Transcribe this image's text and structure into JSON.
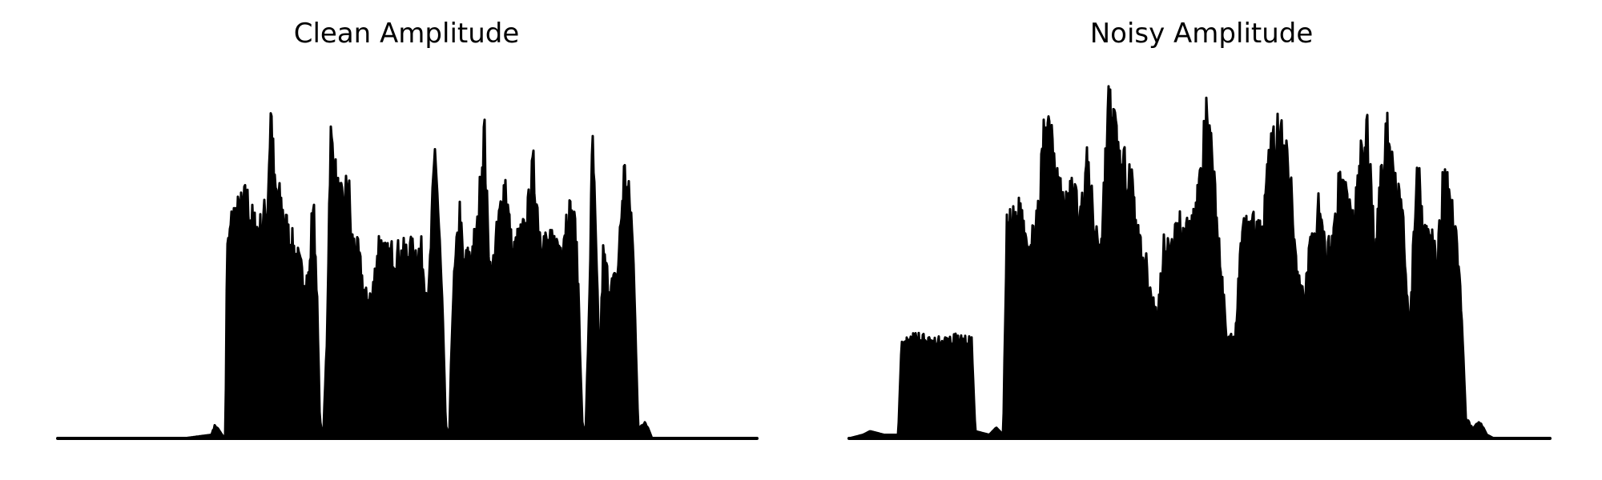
{
  "chart_data": [
    {
      "type": "area",
      "title": "Clean Amplitude",
      "xlabel": "",
      "ylabel": "",
      "axes_visible": false,
      "grid": false,
      "color": "#000000",
      "xlim": [
        0,
        1
      ],
      "ylim": [
        0,
        1
      ],
      "envelope": [
        [
          0.0,
          0.0
        ],
        [
          0.18,
          0.0
        ],
        [
          0.22,
          0.01
        ],
        [
          0.225,
          0.04
        ],
        [
          0.235,
          0.01
        ],
        [
          0.24,
          0.0
        ],
        [
          0.242,
          0.55
        ],
        [
          0.25,
          0.67
        ],
        [
          0.26,
          0.68
        ],
        [
          0.27,
          0.72
        ],
        [
          0.28,
          0.64
        ],
        [
          0.29,
          0.63
        ],
        [
          0.3,
          0.7
        ],
        [
          0.305,
          1.0
        ],
        [
          0.31,
          0.75
        ],
        [
          0.32,
          0.7
        ],
        [
          0.33,
          0.61
        ],
        [
          0.34,
          0.56
        ],
        [
          0.35,
          0.49
        ],
        [
          0.36,
          0.48
        ],
        [
          0.365,
          0.73
        ],
        [
          0.37,
          0.5
        ],
        [
          0.375,
          0.05
        ],
        [
          0.38,
          0.01
        ],
        [
          0.385,
          0.3
        ],
        [
          0.39,
          0.91
        ],
        [
          0.4,
          0.74
        ],
        [
          0.41,
          0.68
        ],
        [
          0.415,
          0.81
        ],
        [
          0.42,
          0.6
        ],
        [
          0.43,
          0.55
        ],
        [
          0.44,
          0.42
        ],
        [
          0.45,
          0.43
        ],
        [
          0.46,
          0.6
        ],
        [
          0.47,
          0.54
        ],
        [
          0.48,
          0.56
        ],
        [
          0.49,
          0.55
        ],
        [
          0.5,
          0.56
        ],
        [
          0.52,
          0.56
        ],
        [
          0.53,
          0.4
        ],
        [
          0.54,
          0.89
        ],
        [
          0.55,
          0.4
        ],
        [
          0.555,
          0.04
        ],
        [
          0.56,
          0.0
        ],
        [
          0.565,
          0.42
        ],
        [
          0.575,
          0.68
        ],
        [
          0.58,
          0.52
        ],
        [
          0.59,
          0.55
        ],
        [
          0.6,
          0.62
        ],
        [
          0.61,
          0.93
        ],
        [
          0.615,
          0.63
        ],
        [
          0.62,
          0.48
        ],
        [
          0.63,
          0.64
        ],
        [
          0.64,
          0.78
        ],
        [
          0.65,
          0.55
        ],
        [
          0.66,
          0.6
        ],
        [
          0.67,
          0.63
        ],
        [
          0.68,
          0.81
        ],
        [
          0.69,
          0.62
        ],
        [
          0.7,
          0.58
        ],
        [
          0.72,
          0.58
        ],
        [
          0.73,
          0.69
        ],
        [
          0.74,
          0.63
        ],
        [
          0.745,
          0.44
        ],
        [
          0.75,
          0.05
        ],
        [
          0.755,
          0.01
        ],
        [
          0.76,
          0.4
        ],
        [
          0.765,
          0.9
        ],
        [
          0.77,
          0.55
        ],
        [
          0.775,
          0.21
        ],
        [
          0.78,
          0.55
        ],
        [
          0.79,
          0.45
        ],
        [
          0.8,
          0.48
        ],
        [
          0.81,
          0.8
        ],
        [
          0.82,
          0.68
        ],
        [
          0.825,
          0.46
        ],
        [
          0.83,
          0.03
        ],
        [
          0.84,
          0.05
        ],
        [
          0.85,
          0.0
        ],
        [
          1.0,
          0.0
        ]
      ]
    },
    {
      "type": "area",
      "title": "Noisy Amplitude",
      "xlabel": "",
      "ylabel": "",
      "axes_visible": false,
      "grid": false,
      "color": "#000000",
      "xlim": [
        0,
        1
      ],
      "ylim": [
        0,
        1
      ],
      "envelope": [
        [
          0.0,
          0.0
        ],
        [
          0.02,
          0.01
        ],
        [
          0.03,
          0.02
        ],
        [
          0.05,
          0.01
        ],
        [
          0.07,
          0.01
        ],
        [
          0.075,
          0.27
        ],
        [
          0.09,
          0.29
        ],
        [
          0.1,
          0.3
        ],
        [
          0.12,
          0.28
        ],
        [
          0.14,
          0.29
        ],
        [
          0.16,
          0.29
        ],
        [
          0.175,
          0.28
        ],
        [
          0.18,
          0.02
        ],
        [
          0.2,
          0.01
        ],
        [
          0.21,
          0.03
        ],
        [
          0.22,
          0.01
        ],
        [
          0.225,
          0.62
        ],
        [
          0.235,
          0.65
        ],
        [
          0.245,
          0.68
        ],
        [
          0.26,
          0.58
        ],
        [
          0.27,
          0.66
        ],
        [
          0.28,
          0.98
        ],
        [
          0.29,
          0.92
        ],
        [
          0.3,
          0.75
        ],
        [
          0.31,
          0.69
        ],
        [
          0.32,
          0.75
        ],
        [
          0.33,
          0.66
        ],
        [
          0.34,
          0.82
        ],
        [
          0.35,
          0.63
        ],
        [
          0.36,
          0.59
        ],
        [
          0.37,
          1.0
        ],
        [
          0.38,
          0.92
        ],
        [
          0.39,
          0.79
        ],
        [
          0.4,
          0.84
        ],
        [
          0.41,
          0.61
        ],
        [
          0.42,
          0.56
        ],
        [
          0.43,
          0.44
        ],
        [
          0.44,
          0.36
        ],
        [
          0.45,
          0.6
        ],
        [
          0.46,
          0.55
        ],
        [
          0.47,
          0.65
        ],
        [
          0.48,
          0.62
        ],
        [
          0.49,
          0.64
        ],
        [
          0.5,
          0.76
        ],
        [
          0.51,
          0.95
        ],
        [
          0.52,
          0.8
        ],
        [
          0.53,
          0.5
        ],
        [
          0.54,
          0.3
        ],
        [
          0.55,
          0.29
        ],
        [
          0.56,
          0.61
        ],
        [
          0.57,
          0.65
        ],
        [
          0.58,
          0.63
        ],
        [
          0.59,
          0.6
        ],
        [
          0.6,
          0.85
        ],
        [
          0.61,
          0.92
        ],
        [
          0.62,
          0.87
        ],
        [
          0.63,
          0.76
        ],
        [
          0.64,
          0.47
        ],
        [
          0.65,
          0.43
        ],
        [
          0.66,
          0.6
        ],
        [
          0.67,
          0.68
        ],
        [
          0.68,
          0.54
        ],
        [
          0.69,
          0.6
        ],
        [
          0.7,
          0.78
        ],
        [
          0.71,
          0.72
        ],
        [
          0.72,
          0.64
        ],
        [
          0.73,
          0.83
        ],
        [
          0.74,
          0.92
        ],
        [
          0.75,
          0.56
        ],
        [
          0.76,
          0.8
        ],
        [
          0.77,
          0.93
        ],
        [
          0.78,
          0.76
        ],
        [
          0.79,
          0.66
        ],
        [
          0.8,
          0.3
        ],
        [
          0.81,
          0.84
        ],
        [
          0.82,
          0.62
        ],
        [
          0.83,
          0.59
        ],
        [
          0.84,
          0.54
        ],
        [
          0.85,
          0.83
        ],
        [
          0.86,
          0.7
        ],
        [
          0.87,
          0.54
        ],
        [
          0.88,
          0.06
        ],
        [
          0.89,
          0.03
        ],
        [
          0.9,
          0.05
        ],
        [
          0.91,
          0.01
        ],
        [
          0.92,
          0.0
        ],
        [
          1.0,
          0.0
        ]
      ]
    }
  ]
}
